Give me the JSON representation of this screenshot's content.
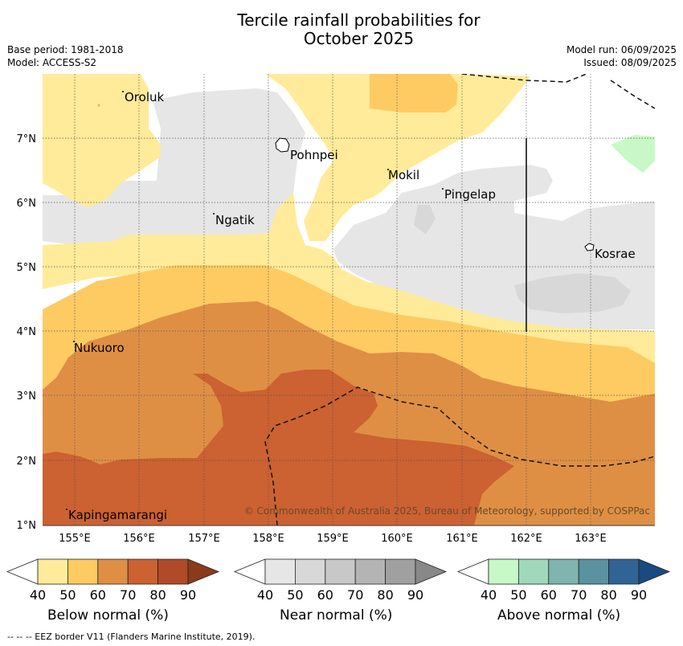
{
  "title": {
    "line1": "Tercile rainfall probabilities for",
    "line2": "October 2025"
  },
  "meta": {
    "base_period": "Base period: 1981-2018",
    "model": "Model: ACCESS-S2",
    "model_run": "Model run: 06/09/2025",
    "issued": "Issued: 08/09/2025"
  },
  "map": {
    "x_ticks": [
      "155°E",
      "156°E",
      "157°E",
      "158°E",
      "159°E",
      "160°E",
      "161°E",
      "162°E",
      "163°E"
    ],
    "y_ticks": [
      "7°N",
      "6°N",
      "5°N",
      "4°N",
      "3°N",
      "2°N",
      "1°N"
    ],
    "places": [
      {
        "name": "Oroluk"
      },
      {
        "name": "Pohnpei"
      },
      {
        "name": "Mokil"
      },
      {
        "name": "Pingelap"
      },
      {
        "name": "Ngatik"
      },
      {
        "name": "Kosrae"
      },
      {
        "name": "Nukuoro"
      },
      {
        "name": "Kapingamarangi"
      }
    ],
    "copyright": "© Commonwealth of Australia 2025, Bureau of Meteorology, supported by COSPPac"
  },
  "legends": [
    {
      "label": "Below normal (%)",
      "ticks": [
        "40",
        "50",
        "60",
        "70",
        "80",
        "90"
      ],
      "colors": [
        "#ffeb99",
        "#fecb62",
        "#df8f44",
        "#cc6131",
        "#b04a28",
        "#8b3a1c"
      ]
    },
    {
      "label": "Near normal (%)",
      "ticks": [
        "40",
        "50",
        "60",
        "70",
        "80",
        "90"
      ],
      "colors": [
        "#e6e6e6",
        "#d8d8d8",
        "#c8c8c8",
        "#b4b4b4",
        "#a0a0a0",
        "#888888"
      ]
    },
    {
      "label": "Above normal (%)",
      "ticks": [
        "40",
        "50",
        "60",
        "70",
        "80",
        "90"
      ],
      "colors": [
        "#c8f8c8",
        "#a0d8bc",
        "#7fb5ae",
        "#5a92a0",
        "#2f6494",
        "#1a4a80"
      ]
    }
  ],
  "footer": "--  --  -- EEZ border V11 (Flanders Marine Institute, 2019)."
}
